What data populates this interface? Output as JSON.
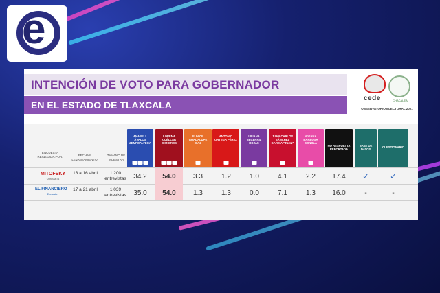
{
  "slide": {
    "title": "INTENCIÓN DE VOTO PARA GOBERNADOR",
    "subtitle": "EN EL ESTADO DE TLAXCALA",
    "org_name": "cede",
    "org_subname": "CHACALEA",
    "org_caption": "OBSERVATORIO ELECTORAL 2021"
  },
  "table": {
    "label_headers": [
      "ENCUESTA REALIZADA POR:",
      "FECHAS LEVANTAMIENTO",
      "TAMAÑO DE MUESTRA"
    ],
    "candidates": [
      {
        "name": "ANABELL ÁVALOS ZEMPOALTECA",
        "color": "#2a4db0"
      },
      {
        "name": "LORENA CUÉLLAR CISNEROS",
        "color": "#a0101e"
      },
      {
        "name": "EUNICE GUADALUPE DÍAZ",
        "color": "#e8702a"
      },
      {
        "name": "ANTONIO ORTEGA PÉREZ",
        "color": "#d81818"
      },
      {
        "name": "LILIANA BECERRIL ROJAS",
        "color": "#7a3aa0"
      },
      {
        "name": "JUAN CARLOS SÁNCHEZ GARCÍA \"JUAN\"",
        "color": "#c8102e"
      },
      {
        "name": "VIVIANA BARBOSA BONOLA",
        "color": "#e84ca8"
      },
      {
        "name": "NO RESPUESTA REPORTADA",
        "color": "#111111"
      },
      {
        "name": "BASE DE DATOS",
        "color": "#1e6e6a"
      },
      {
        "name": "CUESTIONARIO",
        "color": "#1e6e6a"
      }
    ],
    "rows": [
      {
        "pollster": "MITOFSKY",
        "pollster_sub": "CONSULTA",
        "dates": "13 a 16 abril",
        "sample": "1,200 entrevistas",
        "values": [
          "34.2",
          "54.0",
          "3.3",
          "1.2",
          "1.0",
          "4.1",
          "2.2",
          "17.4"
        ],
        "database": "✓",
        "questionnaire": "✓"
      },
      {
        "pollster": "EL FINANCIERO",
        "pollster_sub": "Encuesta",
        "dates": "17 a 21 abril",
        "sample": "1,039 entrevistas",
        "values": [
          "35.0",
          "54.0",
          "1.3",
          "1.3",
          "0.0",
          "7.1",
          "1.3",
          "16.0"
        ],
        "database": "-",
        "questionnaire": "-"
      }
    ]
  },
  "brand": {
    "accent": "#8a52b4",
    "title_color": "#7a3aa0",
    "highlight": "#f7cdd2"
  }
}
